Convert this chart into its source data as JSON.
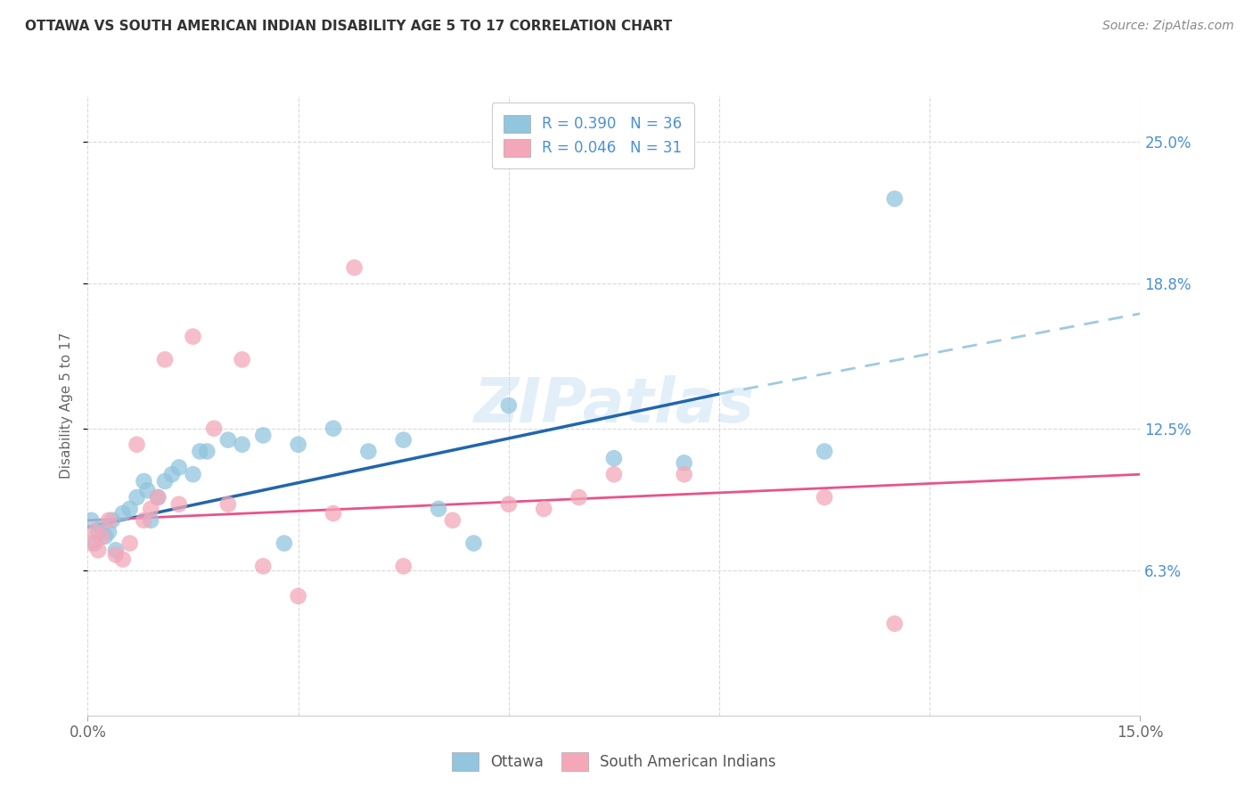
{
  "title": "OTTAWA VS SOUTH AMERICAN INDIAN DISABILITY AGE 5 TO 17 CORRELATION CHART",
  "source": "Source: ZipAtlas.com",
  "ylabel": "Disability Age 5 to 17",
  "ylabel_ticks_labels": [
    "6.3%",
    "12.5%",
    "18.8%",
    "25.0%"
  ],
  "ylabel_ticks_values": [
    6.3,
    12.5,
    18.8,
    25.0
  ],
  "xlim": [
    0.0,
    15.0
  ],
  "ylim": [
    0.0,
    27.0
  ],
  "legend_label1": "Ottawa",
  "legend_label2": "South American Indians",
  "color_ottawa": "#92c5de",
  "color_south_american": "#f4a7b9",
  "color_line_ottawa": "#2166ac",
  "color_line_south_american": "#e8538a",
  "color_line_dash": "#9ecae1",
  "watermark": "ZIPatlas",
  "ottawa_x": [
    0.05,
    0.1,
    0.15,
    0.2,
    0.25,
    0.3,
    0.35,
    0.4,
    0.5,
    0.6,
    0.7,
    0.8,
    0.85,
    0.9,
    1.0,
    1.1,
    1.2,
    1.3,
    1.5,
    1.6,
    1.7,
    2.0,
    2.2,
    2.5,
    2.8,
    3.0,
    3.5,
    4.0,
    4.5,
    5.0,
    5.5,
    6.0,
    7.5,
    8.5,
    10.5,
    11.5
  ],
  "ottawa_y": [
    8.5,
    7.5,
    8.0,
    8.2,
    7.8,
    8.0,
    8.5,
    7.2,
    8.8,
    9.0,
    9.5,
    10.2,
    9.8,
    8.5,
    9.5,
    10.2,
    10.5,
    10.8,
    10.5,
    11.5,
    11.5,
    12.0,
    11.8,
    12.2,
    7.5,
    11.8,
    12.5,
    11.5,
    12.0,
    9.0,
    7.5,
    13.5,
    11.2,
    11.0,
    11.5,
    22.5
  ],
  "sa_x": [
    0.05,
    0.1,
    0.15,
    0.2,
    0.3,
    0.4,
    0.5,
    0.6,
    0.7,
    0.8,
    0.9,
    1.0,
    1.1,
    1.3,
    1.5,
    1.8,
    2.0,
    2.2,
    2.5,
    3.0,
    3.5,
    3.8,
    4.5,
    5.2,
    6.0,
    6.5,
    7.0,
    7.5,
    8.5,
    10.5,
    11.5
  ],
  "sa_y": [
    7.5,
    8.0,
    7.2,
    7.8,
    8.5,
    7.0,
    6.8,
    7.5,
    11.8,
    8.5,
    9.0,
    9.5,
    15.5,
    9.2,
    16.5,
    12.5,
    9.2,
    15.5,
    6.5,
    5.2,
    8.8,
    19.5,
    6.5,
    8.5,
    9.2,
    9.0,
    9.5,
    10.5,
    10.5,
    9.5,
    4.0
  ],
  "background_color": "#ffffff",
  "grid_color": "#d9d9d9",
  "title_color": "#333333",
  "axis_label_color": "#666666",
  "ytick_color": "#4a90d9",
  "xtick_color": "#666666",
  "ottawa_line_x0": 0.0,
  "ottawa_line_y0": 8.2,
  "ottawa_line_x1": 9.0,
  "ottawa_line_y1": 14.0,
  "ottawa_dash_x0": 9.0,
  "ottawa_dash_y0": 14.0,
  "ottawa_dash_x1": 15.0,
  "ottawa_dash_y1": 17.5,
  "sa_line_x0": 0.0,
  "sa_line_y0": 8.5,
  "sa_line_x1": 15.0,
  "sa_line_y1": 10.5
}
